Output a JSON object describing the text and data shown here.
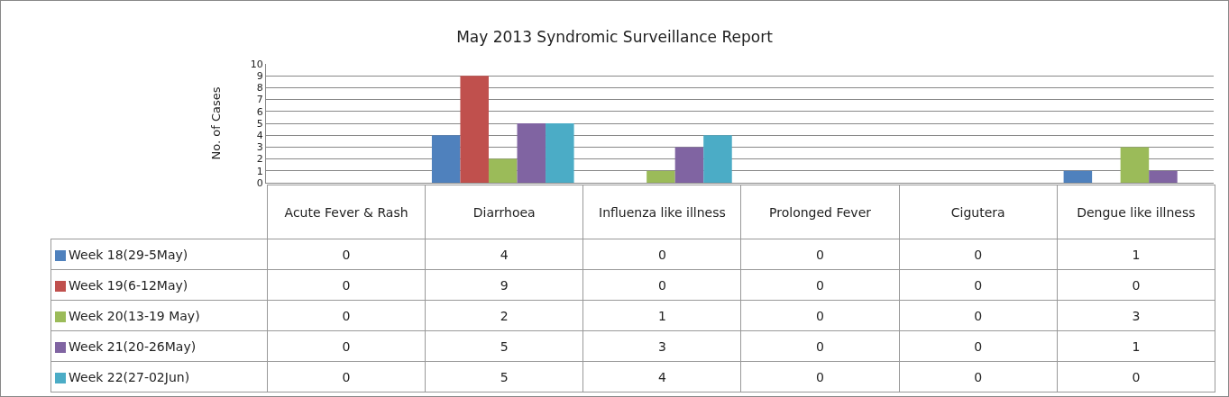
{
  "chart_data": {
    "type": "bar",
    "title": "May 2013 Syndromic Surveillance Report",
    "ylabel": "No. of Cases",
    "categories": [
      "Acute Fever & Rash",
      "Diarrhoea",
      "Influenza like illness",
      "Prolonged Fever",
      "Cigutera",
      "Dengue like illness"
    ],
    "series": [
      {
        "name": "Week 18(29-5May)",
        "color": "#4f81bd",
        "values": [
          0,
          4,
          0,
          0,
          0,
          1
        ]
      },
      {
        "name": "Week 19(6-12May)",
        "color": "#c0504d",
        "values": [
          0,
          9,
          0,
          0,
          0,
          0
        ]
      },
      {
        "name": "Week 20(13-19 May)",
        "color": "#9bbb59",
        "values": [
          0,
          2,
          1,
          0,
          0,
          3
        ]
      },
      {
        "name": "Week 21(20-26May)",
        "color": "#8064a2",
        "values": [
          0,
          5,
          3,
          0,
          0,
          1
        ]
      },
      {
        "name": "Week 22(27-02Jun)",
        "color": "#4bacc6",
        "values": [
          0,
          5,
          4,
          0,
          0,
          0
        ]
      }
    ],
    "ylim": [
      0,
      10
    ],
    "yticks": [
      0,
      1,
      2,
      3,
      4,
      5,
      6,
      7,
      8,
      9,
      10
    ],
    "grid": "y",
    "legend": "bottom left",
    "data_labels": true
  }
}
